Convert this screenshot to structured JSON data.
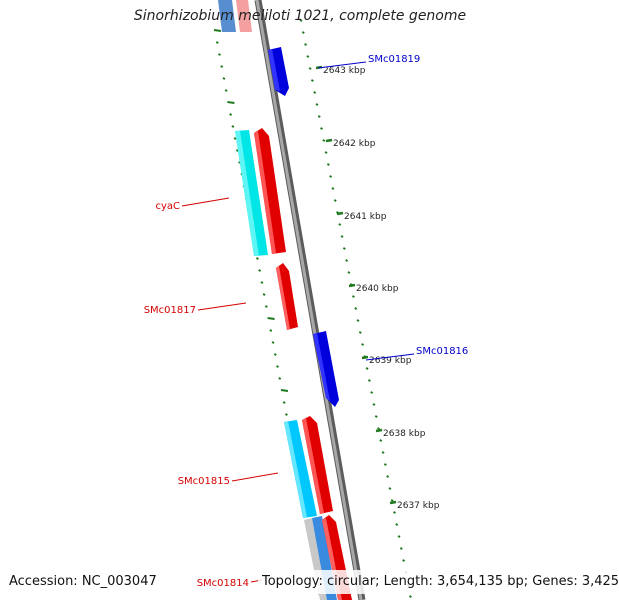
{
  "title": "Sinorhizobium meliloti 1021, complete genome",
  "footer": {
    "accession": "Accession: NC_003047",
    "summary": "Topology: circular; Length: 3,654,135 bp; Genes: 3,425"
  },
  "colors": {
    "backbone": "#8a8a8a",
    "tick": "#1f7a1f",
    "forward_cds": "#e00000",
    "reverse_cds": "#0000dd",
    "rna_cyan": "#00e5e5",
    "label_red": "#d40000",
    "label_blue": "#0000c8"
  },
  "kbp_labels": [
    "2643 kbp",
    "2642 kbp",
    "2641 kbp",
    "2640 kbp",
    "2639 kbp",
    "2638 kbp",
    "2637 kbp"
  ],
  "genes": [
    {
      "label": "SMc01819",
      "color": "blue"
    },
    {
      "label": "cyaC",
      "color": "red"
    },
    {
      "label": "SMc01817",
      "color": "red"
    },
    {
      "label": "SMc01816",
      "color": "blue"
    },
    {
      "label": "SMc01815",
      "color": "red"
    },
    {
      "label": "SMc01814",
      "color": "red"
    }
  ]
}
